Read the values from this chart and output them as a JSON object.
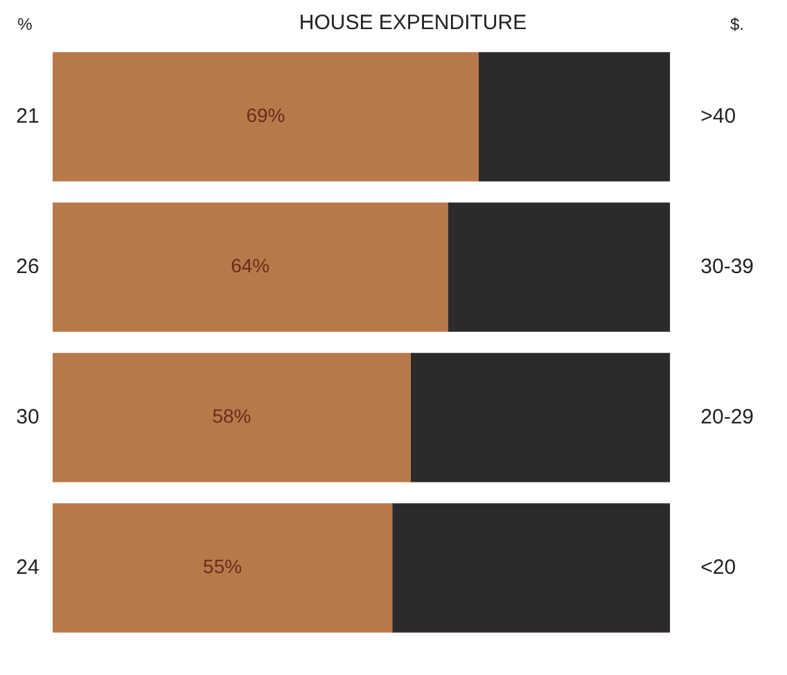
{
  "chart_data": {
    "type": "bar",
    "orientation": "horizontal",
    "stacked": true,
    "title": "HOUSE EXPENDITURE",
    "categories": [
      ">40",
      "30-39",
      "20-29",
      "<20"
    ],
    "series": [
      {
        "color": "#b8794a",
        "values": [
          69,
          64,
          58,
          55
        ],
        "value_labels": [
          "69%",
          "64%",
          "58%",
          "55%"
        ]
      },
      {
        "color": "#2d2a2c",
        "values": [
          31,
          36,
          42,
          45
        ]
      }
    ],
    "xlim": [
      0,
      100
    ],
    "tick_labels": "y",
    "grid": false,
    "legend": false,
    "annotations": [
      "%",
      "$.",
      "21",
      "26",
      "30",
      "24"
    ]
  }
}
